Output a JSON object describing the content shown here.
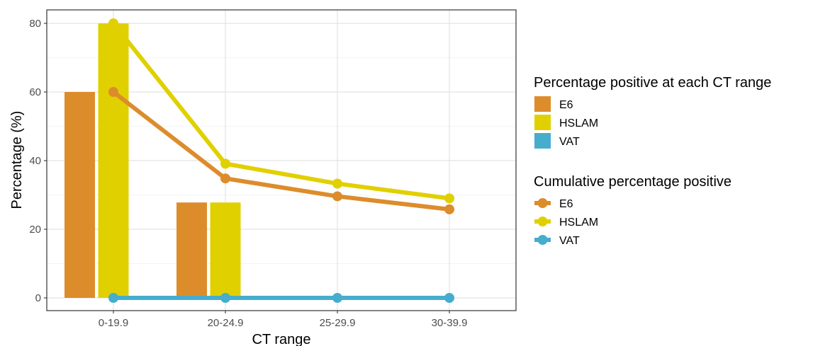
{
  "chart_data": {
    "type": "bar",
    "xlabel": "CT range",
    "ylabel": "Percentage (%)",
    "categories": [
      "0-19.9",
      "20-24.9",
      "25-29.9",
      "30-39.9"
    ],
    "ylim": [
      0,
      83
    ],
    "yticks": [
      0,
      20,
      40,
      60,
      80
    ],
    "grid": true,
    "legend_position": "right",
    "bar_series": [
      {
        "name": "E6",
        "color": "#dd8c2c",
        "values": [
          60,
          27.8,
          0,
          0
        ]
      },
      {
        "name": "HSLAM",
        "color": "#e1d000",
        "values": [
          80,
          27.8,
          0,
          0
        ]
      },
      {
        "name": "VAT",
        "color": "#46adcd",
        "values": [
          0,
          0,
          0,
          0
        ]
      }
    ],
    "line_series": [
      {
        "name": "E6",
        "color": "#dd8c2c",
        "values": [
          60,
          34.8,
          29.6,
          25.8
        ]
      },
      {
        "name": "HSLAM",
        "color": "#e1d000",
        "values": [
          80,
          39.1,
          33.3,
          29.0
        ]
      },
      {
        "name": "VAT",
        "color": "#46adcd",
        "values": [
          0,
          0,
          0,
          0
        ]
      }
    ],
    "legends": [
      {
        "title": "Percentage positive at each CT range",
        "kind": "bar",
        "entries": [
          "E6",
          "HSLAM",
          "VAT"
        ]
      },
      {
        "title": "Cumulative percentage positive",
        "kind": "line",
        "entries": [
          "E6",
          "HSLAM",
          "VAT"
        ]
      }
    ]
  }
}
